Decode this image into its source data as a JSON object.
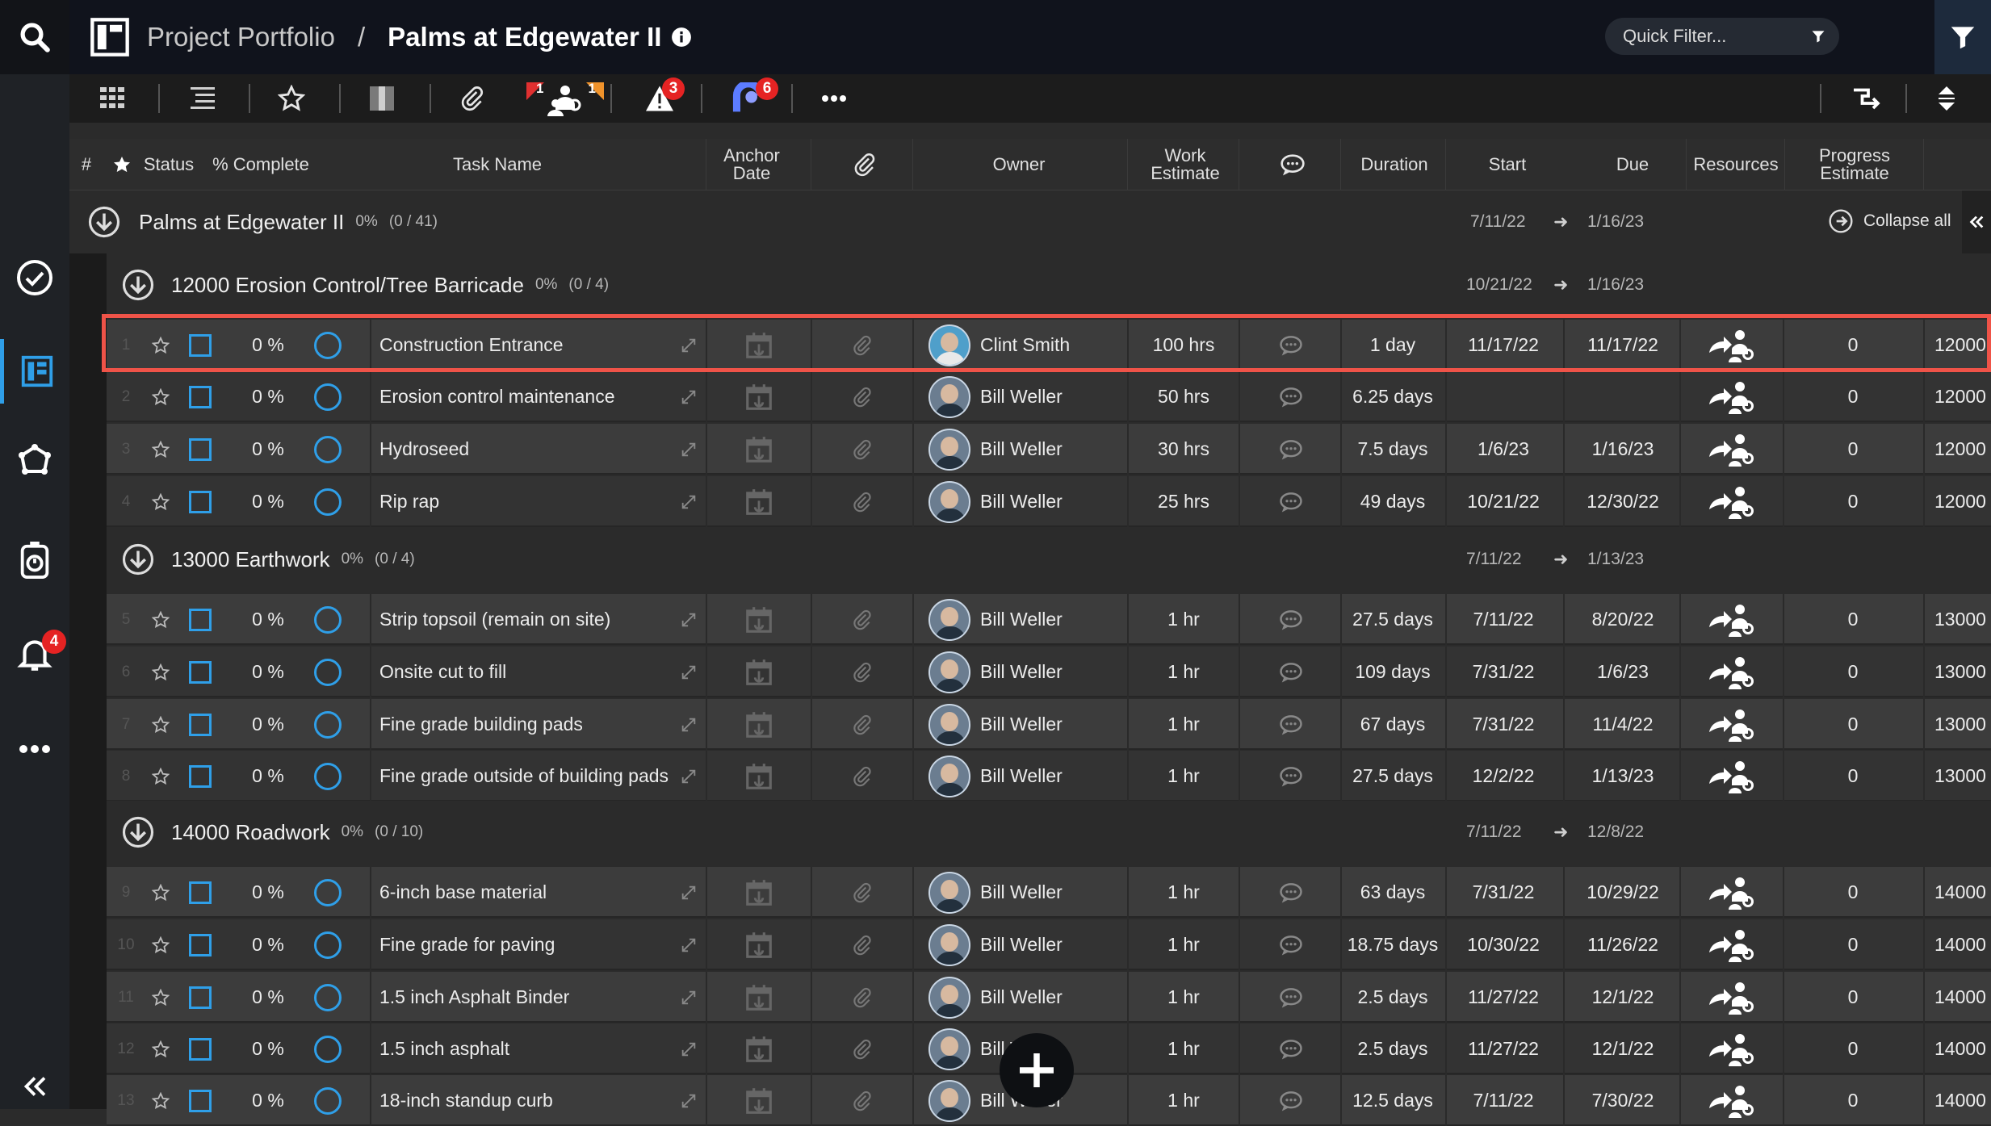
{
  "nav": {
    "notifications_badge": "4"
  },
  "header": {
    "app": "Project Portfolio",
    "separator": "/",
    "project": "Palms at Edgewater II"
  },
  "quick_filter": {
    "placeholder": "Quick Filter..."
  },
  "toolbar": {
    "flag_red": "1",
    "flag_orange": "1",
    "warnings_badge": "3",
    "people_badge": "6"
  },
  "columns": {
    "hash": "#",
    "status": "Status",
    "pct_complete": "% Complete",
    "task_name": "Task Name",
    "anchor_date": "Anchor Date",
    "owner": "Owner",
    "work_estimate": "Work Estimate",
    "duration": "Duration",
    "start": "Start",
    "due": "Due",
    "resources": "Resources",
    "progress_estimate": "Progress Estimate"
  },
  "project_row": {
    "name": "Palms at Edgewater II",
    "pct": "0%",
    "count": "(0 / 41)",
    "start": "7/11/22",
    "end": "1/16/23",
    "collapse_label": "Collapse all"
  },
  "groups": [
    {
      "name": "12000 Erosion Control/Tree Barricade",
      "pct": "0%",
      "count": "(0 / 4)",
      "start": "10/21/22",
      "end": "1/16/23"
    },
    {
      "name": "13000 Earthwork",
      "pct": "0%",
      "count": "(0 / 4)",
      "start": "7/11/22",
      "end": "1/13/23"
    },
    {
      "name": "14000 Roadwork",
      "pct": "0%",
      "count": "(0 / 10)",
      "start": "7/11/22",
      "end": "12/8/22"
    }
  ],
  "tasks": [
    {
      "num": "1",
      "pct": "0 %",
      "name": "Construction Entrance",
      "owner": "Clint Smith",
      "work": "100 hrs",
      "duration": "1 day",
      "start": "11/17/22",
      "due": "11/17/22",
      "progress": "0",
      "code": "12000"
    },
    {
      "num": "2",
      "pct": "0 %",
      "name": "Erosion control maintenance",
      "owner": "Bill Weller",
      "work": "50 hrs",
      "duration": "6.25 days",
      "start": "",
      "due": "",
      "progress": "0",
      "code": "12000"
    },
    {
      "num": "3",
      "pct": "0 %",
      "name": "Hydroseed",
      "owner": "Bill Weller",
      "work": "30 hrs",
      "duration": "7.5 days",
      "start": "1/6/23",
      "due": "1/16/23",
      "progress": "0",
      "code": "12000"
    },
    {
      "num": "4",
      "pct": "0 %",
      "name": "Rip rap",
      "owner": "Bill Weller",
      "work": "25 hrs",
      "duration": "49 days",
      "start": "10/21/22",
      "due": "12/30/22",
      "progress": "0",
      "code": "12000"
    },
    {
      "num": "5",
      "pct": "0 %",
      "name": "Strip topsoil (remain on site)",
      "owner": "Bill Weller",
      "work": "1 hr",
      "duration": "27.5 days",
      "start": "7/11/22",
      "due": "8/20/22",
      "progress": "0",
      "code": "13000 -"
    },
    {
      "num": "6",
      "pct": "0 %",
      "name": "Onsite cut to fill",
      "owner": "Bill Weller",
      "work": "1 hr",
      "duration": "109 days",
      "start": "7/31/22",
      "due": "1/6/23",
      "progress": "0",
      "code": "13000 -"
    },
    {
      "num": "7",
      "pct": "0 %",
      "name": "Fine grade building pads",
      "owner": "Bill Weller",
      "work": "1 hr",
      "duration": "67 days",
      "start": "7/31/22",
      "due": "11/4/22",
      "progress": "0",
      "code": "13000 -"
    },
    {
      "num": "8",
      "pct": "0 %",
      "name": "Fine grade outside of building pads",
      "owner": "Bill Weller",
      "work": "1 hr",
      "duration": "27.5 days",
      "start": "12/2/22",
      "due": "1/13/23",
      "progress": "0",
      "code": "13000 -"
    },
    {
      "num": "9",
      "pct": "0 %",
      "name": "6-inch base material",
      "owner": "Bill Weller",
      "work": "1 hr",
      "duration": "63 days",
      "start": "7/31/22",
      "due": "10/29/22",
      "progress": "0",
      "code": "14000 -"
    },
    {
      "num": "10",
      "pct": "0 %",
      "name": "Fine grade for paving",
      "owner": "Bill Weller",
      "work": "1 hr",
      "duration": "18.75 days",
      "start": "10/30/22",
      "due": "11/26/22",
      "progress": "0",
      "code": "14000 -"
    },
    {
      "num": "11",
      "pct": "0 %",
      "name": "1.5 inch Asphalt Binder",
      "owner": "Bill Weller",
      "work": "1 hr",
      "duration": "2.5 days",
      "start": "11/27/22",
      "due": "12/1/22",
      "progress": "0",
      "code": "14000 -"
    },
    {
      "num": "12",
      "pct": "0 %",
      "name": "1.5 inch asphalt",
      "owner": "Bill Weller",
      "work": "1 hr",
      "duration": "2.5 days",
      "start": "11/27/22",
      "due": "12/1/22",
      "progress": "0",
      "code": "14000 -"
    },
    {
      "num": "13",
      "pct": "0 %",
      "name": "18-inch standup curb",
      "owner": "Bill Weller",
      "work": "1 hr",
      "duration": "12.5 days",
      "start": "7/11/22",
      "due": "7/30/22",
      "progress": "0",
      "code": "14000 -"
    }
  ]
}
